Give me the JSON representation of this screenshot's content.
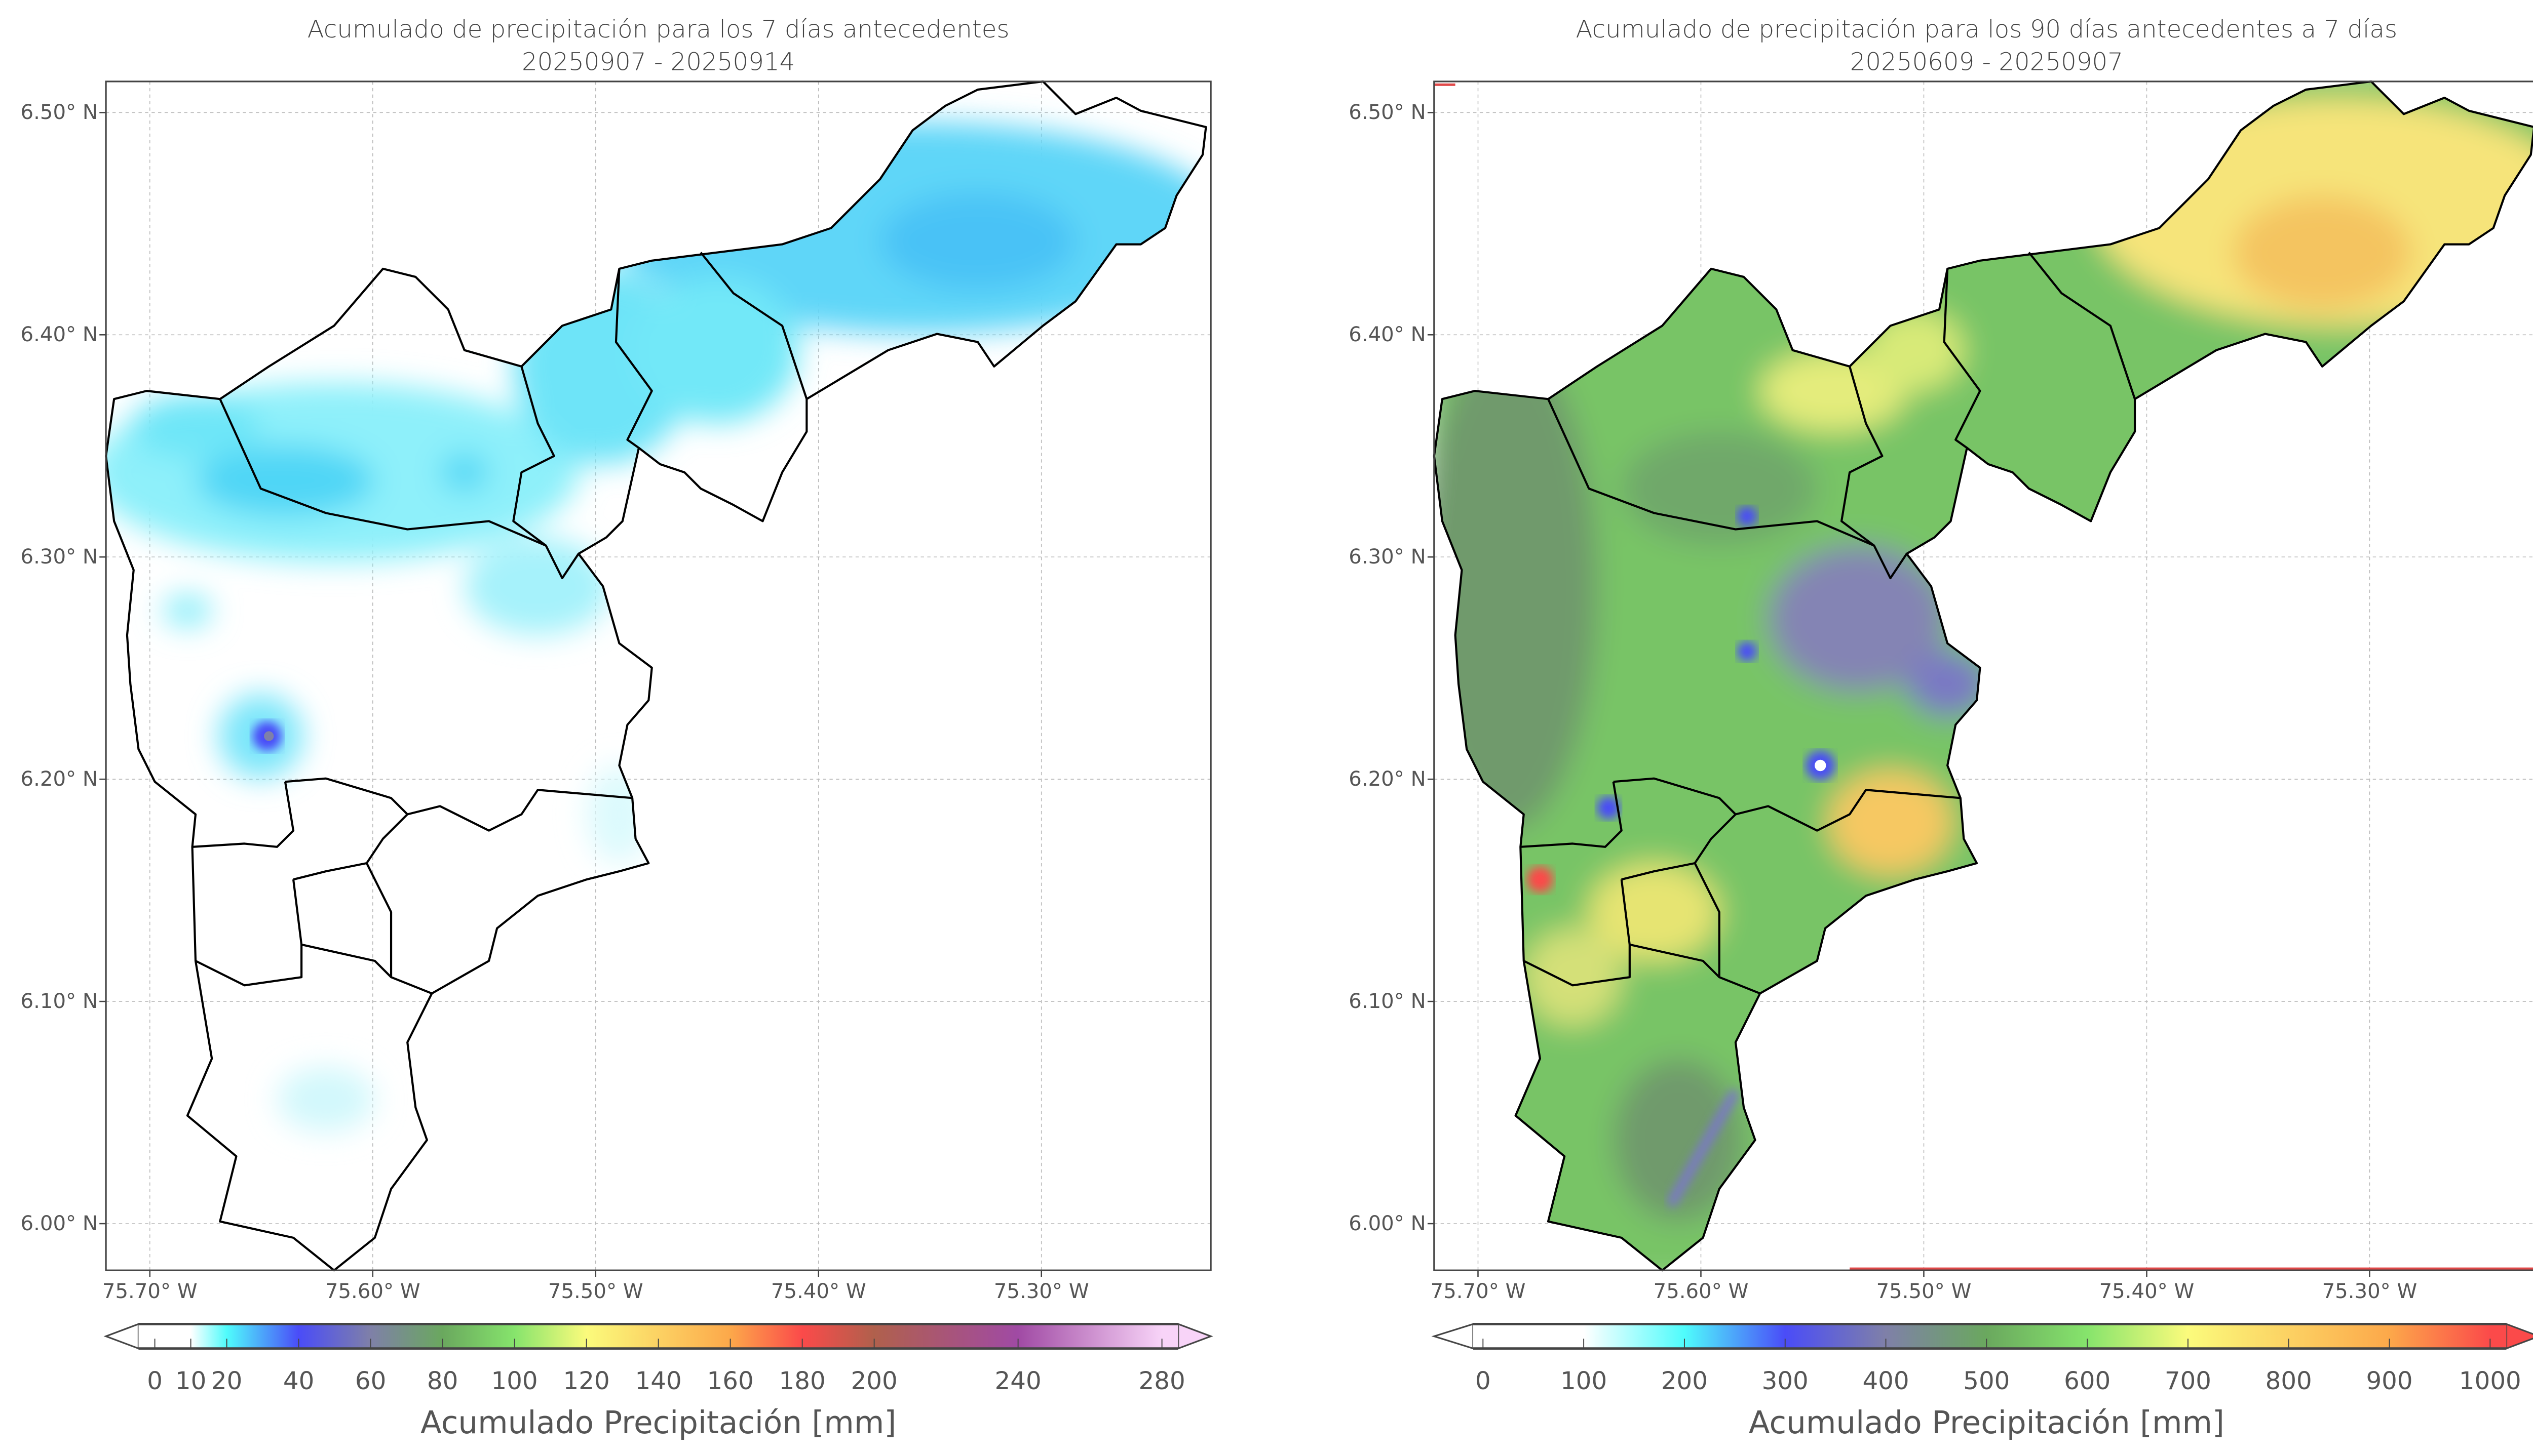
{
  "panels": [
    {
      "title": "Acumulado de precipitación para los 7 días antecedentes",
      "subtitle": "20250907 - 20250914",
      "lat_ticks": [
        "6.50° N",
        "6.40° N",
        "6.30° N",
        "6.20° N",
        "6.10° N",
        "6.00° N"
      ],
      "lat_values": [
        6.5,
        6.4,
        6.3,
        6.2,
        6.1,
        6.0
      ],
      "lon_ticks": [
        "75.70° W",
        "75.60° W",
        "75.50° W",
        "75.40° W",
        "75.30° W"
      ],
      "lon_values": [
        -75.7,
        -75.6,
        -75.5,
        -75.4,
        -75.3
      ],
      "colorbar": {
        "label": "Acumulado Precipitación [mm]",
        "range": [
          0,
          280
        ],
        "tick_values": [
          0,
          10,
          20,
          40,
          60,
          80,
          100,
          120,
          140,
          160,
          180,
          200,
          240,
          280
        ],
        "tick_labels": [
          "0",
          "10",
          "20",
          "40",
          "60",
          "80",
          "100",
          "120",
          "140",
          "160",
          "180",
          "200",
          "240",
          "280"
        ],
        "stops": [
          [
            0,
            "#ffffff"
          ],
          [
            10,
            "#ffffff"
          ],
          [
            20,
            "#4ffcfc"
          ],
          [
            40,
            "#4a4cf8"
          ],
          [
            60,
            "#7f80a8"
          ],
          [
            80,
            "#6aa85e"
          ],
          [
            100,
            "#86e46c"
          ],
          [
            120,
            "#fbfb7c"
          ],
          [
            160,
            "#fca84a"
          ],
          [
            180,
            "#fb4a4a"
          ],
          [
            200,
            "#b0604c"
          ],
          [
            240,
            "#a04aa4"
          ],
          [
            280,
            "#f8d4f8"
          ]
        ],
        "under_color": "#ffffff",
        "over_color": "#f8d4f8"
      }
    },
    {
      "title": "Acumulado de precipitación para los 90 días antecedentes a 7 días",
      "subtitle": "20250609 - 20250907",
      "lat_ticks": [
        "6.50° N",
        "6.40° N",
        "6.30° N",
        "6.20° N",
        "6.10° N",
        "6.00° N"
      ],
      "lat_values": [
        6.5,
        6.4,
        6.3,
        6.2,
        6.1,
        6.0
      ],
      "lon_ticks": [
        "75.70° W",
        "75.60° W",
        "75.50° W",
        "75.40° W",
        "75.30° W"
      ],
      "lon_values": [
        -75.7,
        -75.6,
        -75.5,
        -75.4,
        -75.3
      ],
      "colorbar": {
        "label": "Acumulado Precipitación [mm]",
        "range": [
          0,
          1000
        ],
        "tick_values": [
          0,
          100,
          200,
          300,
          400,
          500,
          600,
          700,
          800,
          900,
          1000
        ],
        "tick_labels": [
          "0",
          "100",
          "200",
          "300",
          "400",
          "500",
          "600",
          "700",
          "800",
          "900",
          "1000"
        ],
        "stops": [
          [
            0,
            "#ffffff"
          ],
          [
            100,
            "#ffffff"
          ],
          [
            200,
            "#4ffcfc"
          ],
          [
            300,
            "#4a4cf8"
          ],
          [
            400,
            "#7f80a8"
          ],
          [
            500,
            "#6aa85e"
          ],
          [
            600,
            "#86e46c"
          ],
          [
            700,
            "#fbfb7c"
          ],
          [
            900,
            "#fca84a"
          ],
          [
            1000,
            "#fb4a4a"
          ]
        ],
        "under_color": "#ffffff",
        "over_color": "#fb4a4a"
      }
    }
  ],
  "extent": {
    "lon": [
      -75.7197,
      -75.224
    ],
    "lat": [
      5.979,
      6.514
    ]
  }
}
